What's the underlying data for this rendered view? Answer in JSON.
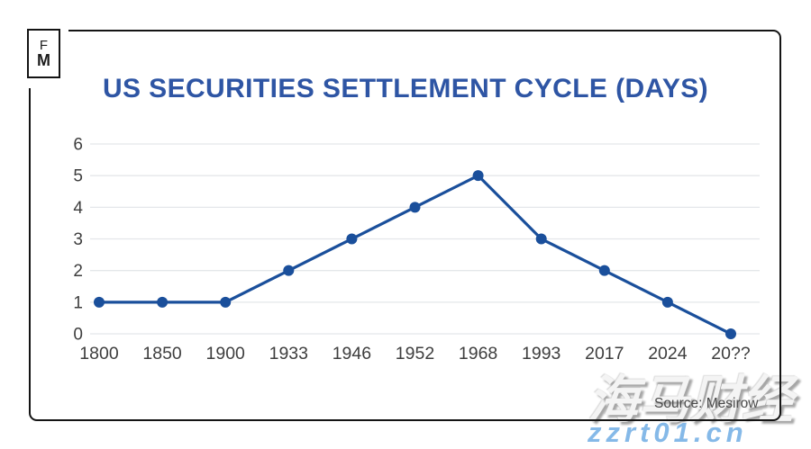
{
  "logo": {
    "f": "F",
    "m": "M"
  },
  "title": "US SECURITIES SETTLEMENT CYCLE (DAYS)",
  "source": {
    "label": "Source: Mesirow"
  },
  "watermarks": {
    "cjk": "海马财经",
    "url": "zzrt01.cn"
  },
  "colors": {
    "title_blue": "#2e55a4",
    "line_blue": "#1a4f9b",
    "frame_black": "#141414",
    "watermark_blue": "#85b9e8"
  },
  "chart_data": {
    "type": "line",
    "title": "US SECURITIES SETTLEMENT CYCLE (DAYS)",
    "categories": [
      "1800",
      "1850",
      "1900",
      "1933",
      "1946",
      "1952",
      "1968",
      "1993",
      "2017",
      "2024",
      "20??"
    ],
    "values": [
      1,
      1,
      1,
      2,
      3,
      4,
      5,
      3,
      2,
      1,
      0
    ],
    "xlabel": "",
    "ylabel": "",
    "ylim": [
      0,
      6
    ],
    "yticks": [
      0,
      1,
      2,
      3,
      4,
      5,
      6
    ],
    "grid": true,
    "legend": "none",
    "line_color": "#1a4f9b",
    "grid_color": "#e4e7ea",
    "tick_color": "#3e3e3e",
    "marker": "circle"
  }
}
